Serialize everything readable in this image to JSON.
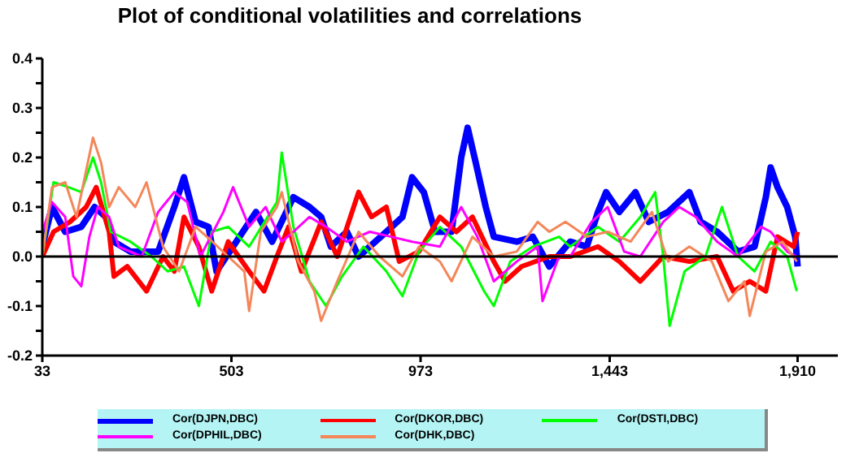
{
  "chart_data": {
    "type": "line",
    "title": "Plot of conditional volatilities and correlations",
    "xlim": [
      33,
      2010
    ],
    "xticks": [
      33,
      503,
      973,
      {
        "value": 1443,
        "label": "1,443"
      },
      {
        "value": 1910,
        "label": "1,910"
      }
    ],
    "ylim": [
      -0.2,
      0.4
    ],
    "yticks": [
      {
        "value": -0.2,
        "label": "-0.2"
      },
      {
        "value": -0.15,
        "label": null
      },
      {
        "value": -0.1,
        "label": "-0.1"
      },
      {
        "value": -0.05,
        "label": null
      },
      {
        "value": 0,
        "label": "0.0"
      },
      {
        "value": 0.05,
        "label": null
      },
      {
        "value": 0.1,
        "label": "0.1"
      },
      {
        "value": 0.15,
        "label": null
      },
      {
        "value": 0.2,
        "label": "0.2"
      },
      {
        "value": 0.25,
        "label": null
      },
      {
        "value": 0.3,
        "label": "0.3"
      },
      {
        "value": 0.35,
        "label": null
      },
      {
        "value": 0.4,
        "label": "0.4"
      }
    ],
    "ref_lines": [
      {
        "axis": "y",
        "value": 0,
        "color": "#000000"
      }
    ],
    "grid": false,
    "legend": "bottom",
    "marker": "none",
    "line_style": "solid",
    "series": [
      {
        "name": "Cor(DJPN,DBC)",
        "color": "#0000ff",
        "x": [
          33,
          57,
          90,
          130,
          163,
          191,
          211,
          252,
          321,
          361,
          385,
          414,
          446,
          466,
          507,
          564,
          604,
          657,
          697,
          726,
          750,
          790,
          819,
          888,
          928,
          952,
          981,
          1009,
          1050,
          1074,
          1090,
          1110,
          1135,
          1155,
          1212,
          1252,
          1293,
          1345,
          1386,
          1414,
          1434,
          1467,
          1507,
          1540,
          1588,
          1641,
          1669,
          1710,
          1762,
          1803,
          1831,
          1843,
          1860,
          1884,
          1904,
          1910
        ],
        "values": [
          0.02,
          0.1,
          0.05,
          0.06,
          0.1,
          0.08,
          0.03,
          0.01,
          0.01,
          0.1,
          0.16,
          0.07,
          0.06,
          -0.03,
          0.02,
          0.09,
          0.03,
          0.12,
          0.1,
          0.08,
          0.02,
          0.05,
          0,
          0.05,
          0.08,
          0.16,
          0.13,
          0.05,
          0.05,
          0.2,
          0.26,
          0.19,
          0.1,
          0.04,
          0.03,
          0.04,
          -0.02,
          0.03,
          0.02,
          0.09,
          0.13,
          0.09,
          0.13,
          0.07,
          0.09,
          0.13,
          0.07,
          0.05,
          0.01,
          0.02,
          0.12,
          0.18,
          0.14,
          0.1,
          0.04,
          -0.02
        ]
      },
      {
        "name": "Cor(DKOR,DBC)",
        "color": "#ff0000",
        "x": [
          33,
          61,
          102,
          142,
          167,
          199,
          211,
          244,
          292,
          333,
          361,
          385,
          422,
          454,
          495,
          547,
          584,
          616,
          645,
          677,
          726,
          766,
          819,
          851,
          888,
          920,
          969,
          1021,
          1062,
          1102,
          1155,
          1183,
          1224,
          1293,
          1345,
          1414,
          1467,
          1519,
          1576,
          1641,
          1710,
          1750,
          1791,
          1831,
          1860,
          1900,
          1910
        ],
        "values": [
          0,
          0.05,
          0.07,
          0.1,
          0.14,
          0.05,
          -0.04,
          -0.02,
          -0.07,
          0,
          -0.03,
          0.08,
          0.02,
          -0.07,
          0.03,
          -0.03,
          -0.07,
          0,
          0.06,
          -0.03,
          0.07,
          0,
          0.13,
          0.08,
          0.1,
          -0.01,
          0.01,
          0.08,
          0.05,
          0.08,
          -0.01,
          -0.05,
          -0.02,
          0,
          0,
          0.02,
          -0.01,
          -0.05,
          0,
          -0.01,
          0,
          -0.07,
          -0.05,
          -0.07,
          0.04,
          0.02,
          0.05
        ]
      },
      {
        "name": "Cor(DSTI,DBC)",
        "color": "#00ff00",
        "x": [
          33,
          61,
          98,
          130,
          159,
          179,
          203,
          252,
          304,
          345,
          385,
          422,
          454,
          495,
          547,
          616,
          628,
          657,
          697,
          738,
          778,
          831,
          888,
          928,
          969,
          1021,
          1074,
          1131,
          1155,
          1196,
          1252,
          1317,
          1345,
          1414,
          1467,
          1519,
          1556,
          1576,
          1592,
          1629,
          1681,
          1722,
          1762,
          1803,
          1843,
          1884,
          1908
        ],
        "values": [
          0,
          0.15,
          0.14,
          0.13,
          0.2,
          0.15,
          0.05,
          0.03,
          0,
          -0.03,
          -0.02,
          -0.1,
          0.05,
          0.06,
          0.02,
          0.11,
          0.21,
          0.06,
          -0.05,
          -0.1,
          -0.04,
          0.02,
          -0.03,
          -0.08,
          0.01,
          0.06,
          0.02,
          -0.07,
          -0.1,
          -0.01,
          0.02,
          0.04,
          0.02,
          0.06,
          0.03,
          0.08,
          0.13,
          0,
          -0.14,
          -0.03,
          0,
          0.1,
          0,
          -0.03,
          0.03,
          0,
          -0.07
        ]
      },
      {
        "name": "Cor(DPHIL,DBC)",
        "color": "#ff00ff",
        "x": [
          33,
          57,
          90,
          110,
          130,
          150,
          171,
          199,
          223,
          280,
          321,
          361,
          393,
          426,
          483,
          507,
          547,
          588,
          628,
          657,
          697,
          738,
          790,
          847,
          900,
          952,
          1021,
          1074,
          1114,
          1155,
          1212,
          1264,
          1276,
          1317,
          1345,
          1398,
          1438,
          1479,
          1519,
          1576,
          1616,
          1657,
          1710,
          1762,
          1819,
          1843,
          1884,
          1908
        ],
        "values": [
          0.05,
          0.11,
          0.08,
          -0.04,
          -0.06,
          0.04,
          0.1,
          0.08,
          0.02,
          0,
          0.09,
          0.13,
          0.11,
          0,
          0.09,
          0.14,
          0.06,
          0.1,
          0.03,
          0.05,
          0.08,
          0.06,
          0.03,
          0.05,
          0.04,
          0.03,
          0.02,
          0.1,
          0.04,
          -0.05,
          -0.01,
          0.02,
          -0.09,
          0,
          0,
          0.07,
          0.1,
          0.01,
          0,
          0.07,
          0.1,
          0.08,
          0.03,
          0,
          0.06,
          0.05,
          0.01,
          0
        ]
      },
      {
        "name": "Cor(DHK,DBC)",
        "color": "#f4875a",
        "x": [
          33,
          57,
          90,
          118,
          159,
          179,
          199,
          223,
          264,
          292,
          333,
          373,
          414,
          442,
          495,
          535,
          547,
          576,
          616,
          628,
          669,
          709,
          726,
          766,
          819,
          871,
          928,
          969,
          1021,
          1050,
          1102,
          1155,
          1212,
          1264,
          1293,
          1333,
          1386,
          1438,
          1495,
          1548,
          1588,
          1641,
          1697,
          1738,
          1778,
          1791,
          1831,
          1872,
          1908
        ],
        "values": [
          0,
          0.14,
          0.15,
          0.08,
          0.24,
          0.19,
          0.1,
          0.14,
          0.1,
          0.15,
          0.02,
          -0.03,
          0.06,
          0.04,
          0,
          -0.03,
          -0.11,
          0.05,
          0.1,
          0.13,
          -0.01,
          -0.07,
          -0.13,
          -0.05,
          0.05,
          0,
          -0.04,
          0.02,
          -0.01,
          -0.05,
          0.04,
          0,
          0.01,
          0.07,
          0.05,
          0.07,
          0.04,
          0.05,
          0.03,
          0.09,
          -0.01,
          0.02,
          -0.01,
          -0.09,
          -0.05,
          -0.12,
          0.01,
          0.03,
          -0.01
        ]
      }
    ]
  }
}
